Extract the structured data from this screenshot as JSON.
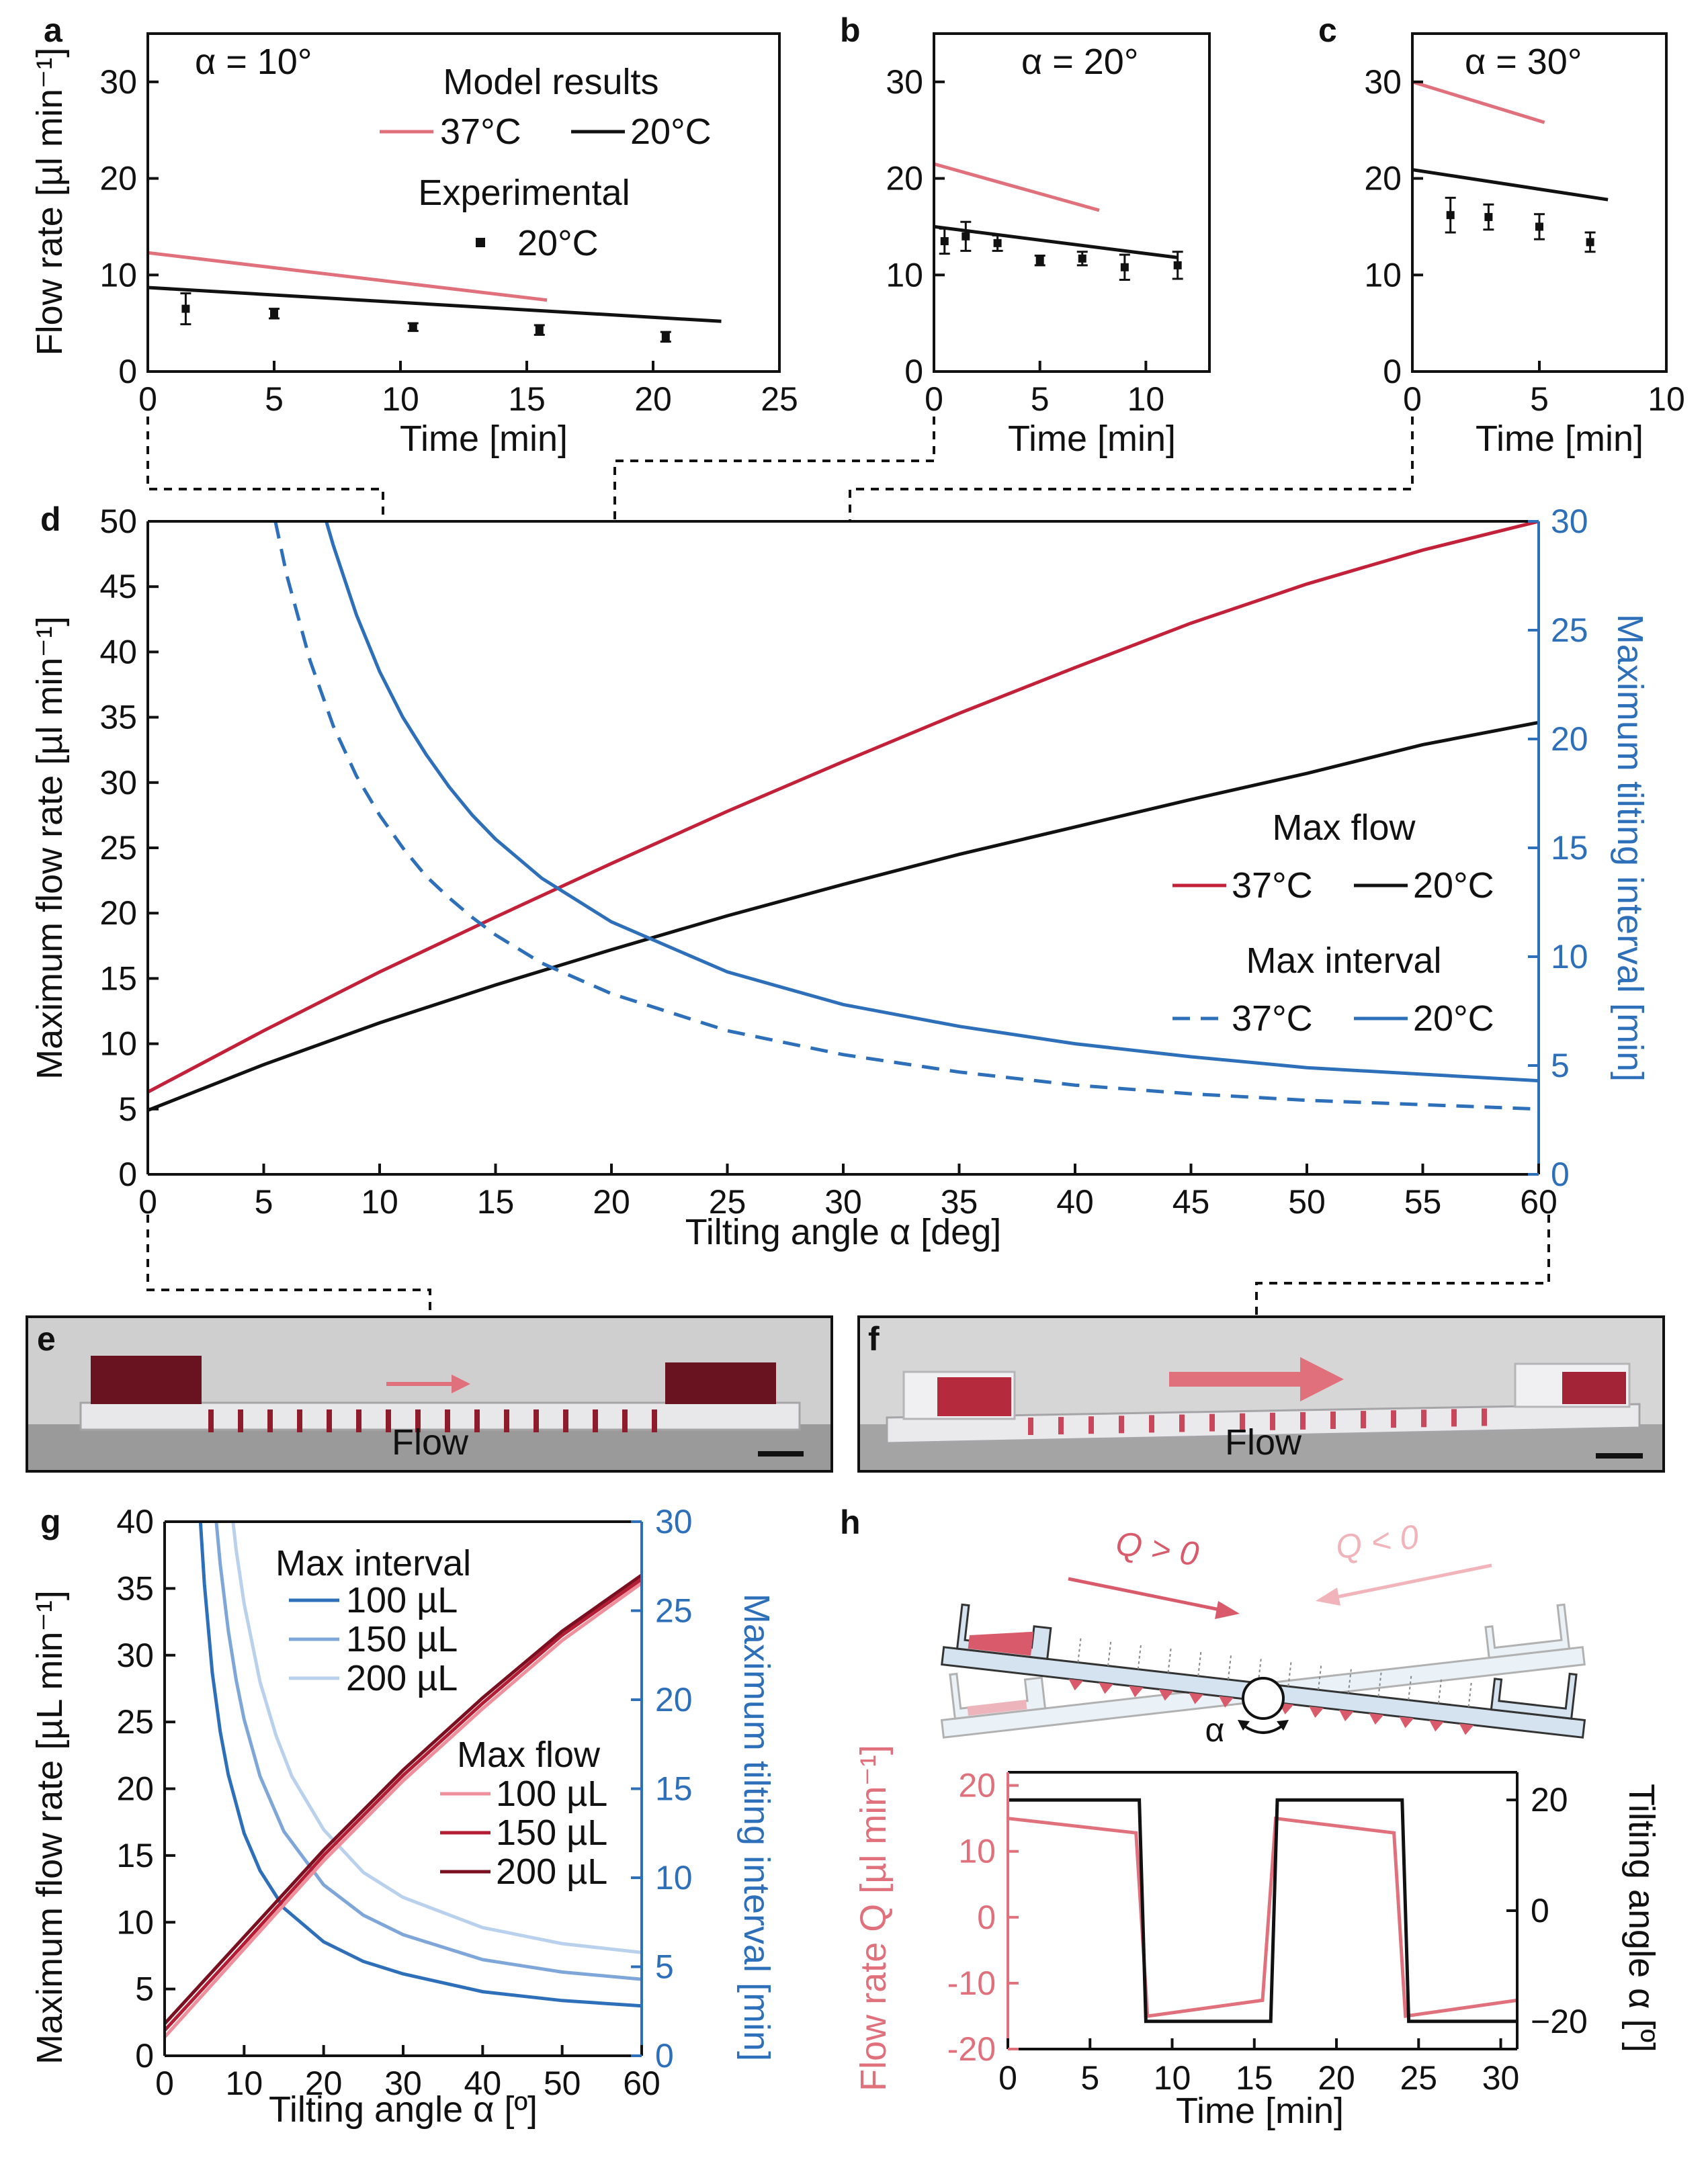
{
  "colors": {
    "red37": "#e0707b",
    "black20": "#111111",
    "darkred37": "#c3213a",
    "blue": "#2e6fba",
    "blue150": "#7ea6d8",
    "blue200": "#b9d1ec",
    "pink100": "#ef8f9b",
    "red150": "#b51d35",
    "maroon200": "#7a0f1f",
    "diagram_fill": "#d4e3ef",
    "diagram_red": "#d95b6b"
  },
  "photos": {
    "e": {
      "letter": "e",
      "label": "Flow"
    },
    "f": {
      "letter": "f",
      "label": "Flow"
    }
  },
  "diagram": {
    "letter": "h",
    "q_pos": "Q > 0",
    "q_neg": "Q < 0",
    "alpha": "α"
  },
  "chart_data": [
    {
      "id": "a",
      "type": "line",
      "letter": "a",
      "annotation": "α = 10°",
      "xlabel": "Time [min]",
      "ylabel": "Flow rate [µl min⁻¹]",
      "xlim": [
        0,
        25
      ],
      "ylim": [
        0,
        35
      ],
      "xticks": [
        0,
        5,
        10,
        15,
        20,
        25
      ],
      "yticks": [
        0,
        10,
        20,
        30
      ],
      "series": [
        {
          "key": "m37",
          "color": "#e0707b",
          "x": [
            0,
            15.8
          ],
          "y": [
            12.3,
            7.4
          ]
        },
        {
          "key": "m20",
          "color": "#111111",
          "x": [
            0,
            22.7
          ],
          "y": [
            8.7,
            5.2
          ]
        }
      ],
      "points": {
        "x": [
          1.5,
          5,
          10.5,
          15.5,
          20.5
        ],
        "y": [
          6.5,
          6.0,
          4.6,
          4.3,
          3.6
        ],
        "err": [
          1.6,
          0.5,
          0.4,
          0.5,
          0.5
        ]
      },
      "legend": {
        "model_title": "Model results",
        "model_37": "37°C",
        "model_20": "20°C",
        "exp_title": "Experimental",
        "exp_20": "20°C"
      }
    },
    {
      "id": "b",
      "type": "line",
      "letter": "b",
      "annotation": "α = 20°",
      "xlabel": "Time [min]",
      "xlim": [
        0,
        13
      ],
      "ylim": [
        0,
        35
      ],
      "xticks": [
        0,
        5,
        10
      ],
      "yticks": [
        0,
        10,
        20,
        30
      ],
      "series": [
        {
          "key": "m37",
          "color": "#e0707b",
          "x": [
            0,
            7.8
          ],
          "y": [
            21.5,
            16.7
          ]
        },
        {
          "key": "m20",
          "color": "#111111",
          "x": [
            0,
            11.5
          ],
          "y": [
            15.0,
            11.8
          ]
        }
      ],
      "points": {
        "x": [
          0.5,
          1.5,
          3,
          5,
          7,
          9,
          11.5
        ],
        "y": [
          13.5,
          14.0,
          13.3,
          11.5,
          11.7,
          10.8,
          11.0
        ],
        "err": [
          1.3,
          1.5,
          0.8,
          0.5,
          0.7,
          1.3,
          1.4
        ]
      }
    },
    {
      "id": "c",
      "type": "line",
      "letter": "c",
      "annotation": "α = 30°",
      "xlabel": "Time [min]",
      "xlim": [
        0,
        10
      ],
      "ylim": [
        0,
        35
      ],
      "xticks": [
        0,
        5,
        10
      ],
      "yticks": [
        0,
        10,
        20,
        30
      ],
      "series": [
        {
          "key": "m37",
          "color": "#e0707b",
          "x": [
            0,
            5.2
          ],
          "y": [
            30.0,
            25.8
          ]
        },
        {
          "key": "m20",
          "color": "#111111",
          "x": [
            0,
            7.7
          ],
          "y": [
            20.9,
            17.8
          ]
        }
      ],
      "points": {
        "x": [
          1.5,
          3,
          5,
          7
        ],
        "y": [
          16.2,
          16.0,
          15.0,
          13.4
        ],
        "err": [
          1.8,
          1.3,
          1.3,
          1.0
        ]
      }
    },
    {
      "id": "d",
      "type": "line",
      "letter": "d",
      "xlabel": "Tilting angle α [deg]",
      "ylabel": "Maximum flow rate [µl min⁻¹]",
      "y2label": "Maximum tilting interval [min]",
      "xlim": [
        0,
        60
      ],
      "ylim": [
        0,
        50
      ],
      "y2lim": [
        0,
        30
      ],
      "xticks": [
        0,
        5,
        10,
        15,
        20,
        25,
        30,
        35,
        40,
        45,
        50,
        55,
        60
      ],
      "yticks": [
        0,
        5,
        10,
        15,
        20,
        25,
        30,
        35,
        40,
        45,
        50
      ],
      "y2ticks": [
        0,
        5,
        10,
        15,
        20,
        25,
        30
      ],
      "series": [
        {
          "key": "flow37",
          "axis": "left",
          "color": "#c3213a",
          "dash": false,
          "x": [
            0,
            5,
            10,
            15,
            20,
            25,
            30,
            35,
            40,
            45,
            50,
            55,
            60
          ],
          "y": [
            6.3,
            11,
            15.5,
            19.7,
            23.8,
            27.8,
            31.6,
            35.3,
            38.8,
            42.2,
            45.2,
            47.8,
            50.0
          ]
        },
        {
          "key": "flow20",
          "axis": "left",
          "color": "#111111",
          "dash": false,
          "x": [
            0,
            5,
            10,
            15,
            20,
            25,
            30,
            35,
            40,
            45,
            50,
            55,
            60
          ],
          "y": [
            4.9,
            8.4,
            11.6,
            14.5,
            17.2,
            19.8,
            22.2,
            24.5,
            26.6,
            28.7,
            30.7,
            32.9,
            34.6
          ]
        },
        {
          "key": "int37",
          "axis": "right",
          "color": "#2e6fba",
          "dash": true,
          "x": [
            5.5,
            6,
            7,
            8,
            9,
            10,
            11,
            12,
            13,
            14,
            15,
            17,
            20,
            25,
            30,
            35,
            40,
            45,
            50,
            55,
            60
          ],
          "y": [
            30,
            27.5,
            23.6,
            20.6,
            18.3,
            16.5,
            15.0,
            13.7,
            12.7,
            11.8,
            11.0,
            9.7,
            8.3,
            6.6,
            5.5,
            4.7,
            4.1,
            3.7,
            3.4,
            3.2,
            3.0
          ]
        },
        {
          "key": "int20",
          "axis": "right",
          "color": "#2e6fba",
          "dash": false,
          "x": [
            7.7,
            8,
            9,
            10,
            11,
            12,
            13,
            14,
            15,
            17,
            20,
            25,
            30,
            35,
            40,
            45,
            50,
            55,
            60
          ],
          "y": [
            30,
            28.9,
            25.7,
            23.1,
            21.0,
            19.3,
            17.8,
            16.5,
            15.4,
            13.6,
            11.6,
            9.3,
            7.8,
            6.8,
            6.0,
            5.4,
            4.9,
            4.6,
            4.3
          ]
        }
      ],
      "legend": {
        "flow_title": "Max flow",
        "flow_37": "37°C",
        "flow_20": "20°C",
        "interval_title": "Max interval",
        "interval_37": "37°C",
        "interval_20": "20°C"
      }
    },
    {
      "id": "g",
      "type": "line",
      "letter": "g",
      "xlabel": "Tilting angle α [º]",
      "ylabel": "Maximum flow rate [µL min⁻¹]",
      "y2label": "Maximum tilting interval [min]",
      "xlim": [
        0,
        60
      ],
      "ylim": [
        0,
        40
      ],
      "y2lim": [
        0,
        30
      ],
      "xticks": [
        0,
        10,
        20,
        30,
        40,
        50,
        60
      ],
      "yticks": [
        0,
        5,
        10,
        15,
        20,
        25,
        30,
        35,
        40
      ],
      "y2ticks": [
        0,
        5,
        10,
        15,
        20,
        25,
        30
      ],
      "series": [
        {
          "key": "int100",
          "axis": "right",
          "color": "#2e6fba",
          "x": [
            4.5,
            5,
            6,
            7,
            8,
            10,
            12,
            15,
            20,
            25,
            30,
            40,
            50,
            60
          ],
          "y": [
            30,
            26.5,
            21.5,
            18.2,
            15.8,
            12.5,
            10.4,
            8.3,
            6.4,
            5.3,
            4.6,
            3.6,
            3.1,
            2.8
          ]
        },
        {
          "key": "int150",
          "axis": "right",
          "color": "#7ea6d8",
          "x": [
            6.5,
            7,
            8,
            9,
            10,
            12,
            15,
            20,
            25,
            30,
            40,
            50,
            60
          ],
          "y": [
            30,
            27.6,
            23.9,
            21.1,
            18.9,
            15.7,
            12.6,
            9.6,
            7.9,
            6.8,
            5.4,
            4.7,
            4.3
          ]
        },
        {
          "key": "int200",
          "axis": "right",
          "color": "#b9d1ec",
          "x": [
            8.6,
            9,
            10,
            12,
            14,
            16,
            20,
            25,
            30,
            40,
            50,
            60
          ],
          "y": [
            30,
            28.4,
            25.4,
            21.0,
            18.0,
            15.7,
            12.7,
            10.3,
            8.9,
            7.2,
            6.3,
            5.8
          ]
        },
        {
          "key": "flow100",
          "axis": "left",
          "color": "#ef8f9b",
          "x": [
            0,
            10,
            20,
            30,
            40,
            50,
            60
          ],
          "y": [
            1.4,
            8.0,
            14.6,
            20.6,
            26.0,
            31.1,
            35.4
          ]
        },
        {
          "key": "flow150",
          "axis": "left",
          "color": "#b51d35",
          "x": [
            0,
            10,
            20,
            30,
            40,
            50,
            60
          ],
          "y": [
            1.9,
            8.4,
            15.0,
            21.0,
            26.4,
            31.5,
            35.7
          ]
        },
        {
          "key": "flow200",
          "axis": "left",
          "color": "#7a0f1f",
          "x": [
            0,
            10,
            20,
            30,
            40,
            50,
            60
          ],
          "y": [
            2.4,
            8.9,
            15.4,
            21.4,
            26.8,
            31.8,
            36.0
          ]
        }
      ],
      "legend": {
        "interval_title": "Max interval",
        "interval_items": [
          "100 µL",
          "150 µL",
          "200 µL"
        ],
        "flow_title": "Max flow",
        "flow_items": [
          "100 µL",
          "150 µL",
          "200 µL"
        ]
      }
    },
    {
      "id": "h",
      "type": "line",
      "letter": "h",
      "xlabel": "Time [min]",
      "ylabel": "Flow rate Q [µl min⁻¹]",
      "y2label": "Tilting angle α [º]",
      "xlim": [
        0,
        31
      ],
      "ylim": [
        -20,
        22
      ],
      "y2lim": [
        -25,
        25
      ],
      "xticks": [
        0,
        5,
        10,
        15,
        20,
        25,
        30
      ],
      "yticks": [
        -20,
        -10,
        0,
        10,
        20
      ],
      "y2ticks": [
        -20,
        0,
        20
      ],
      "y2ticklabels": [
        "−20",
        "0",
        "20"
      ],
      "series": [
        {
          "key": "flow",
          "axis": "left",
          "color": "#e0707b",
          "x": [
            0,
            7.8,
            8.5,
            15.5,
            16.3,
            23.5,
            24.2,
            31
          ],
          "y": [
            15.0,
            12.8,
            -15.0,
            -12.6,
            15.0,
            12.8,
            -15.0,
            -12.6
          ]
        },
        {
          "key": "angle",
          "axis": "right",
          "color": "#111111",
          "x": [
            0,
            8.0,
            8.4,
            16.0,
            16.4,
            24.0,
            24.4,
            31
          ],
          "y": [
            20,
            20,
            -20,
            -20,
            20,
            20,
            -20,
            -20
          ]
        }
      ]
    }
  ]
}
